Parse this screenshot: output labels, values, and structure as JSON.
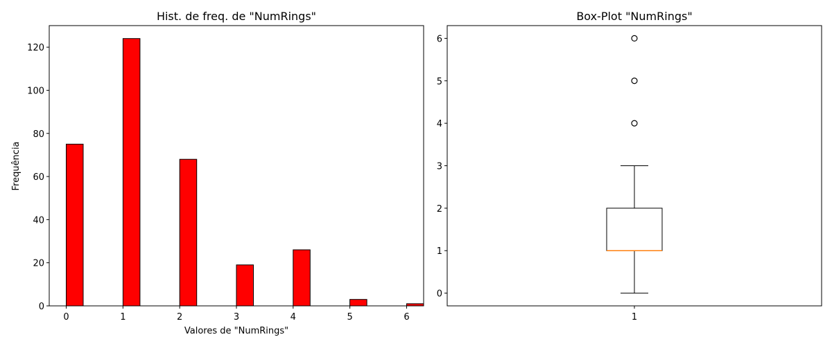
{
  "chart_data": [
    {
      "type": "bar",
      "title": "Hist. de freq. de \"NumRings\"",
      "xlabel": "Valores de \"NumRings\"",
      "ylabel": "Frequência",
      "x": [
        0,
        1,
        2,
        3,
        4,
        5,
        6
      ],
      "values": [
        75,
        124,
        68,
        19,
        26,
        3,
        1
      ],
      "xlim": [
        -0.3,
        6.3
      ],
      "ylim": [
        0,
        130
      ],
      "xticks": [
        "0",
        "1",
        "2",
        "3",
        "4",
        "5",
        "6"
      ],
      "yticks": [
        "0",
        "20",
        "40",
        "60",
        "80",
        "100",
        "120"
      ],
      "bar_color": "#ff0000",
      "edge_color": "#000000",
      "grid": false
    },
    {
      "type": "box",
      "title": "Box-Plot \"NumRings\"",
      "categories": [
        "1"
      ],
      "stats": {
        "whisker_low": 0,
        "q1": 1,
        "median": 1,
        "q3": 2,
        "whisker_high": 3
      },
      "outliers": [
        4,
        5,
        6
      ],
      "ylim": [
        -0.3,
        6.3
      ],
      "yticks": [
        "0",
        "1",
        "2",
        "3",
        "4",
        "5",
        "6"
      ],
      "median_color": "#ff7f0e",
      "grid": false
    }
  ]
}
